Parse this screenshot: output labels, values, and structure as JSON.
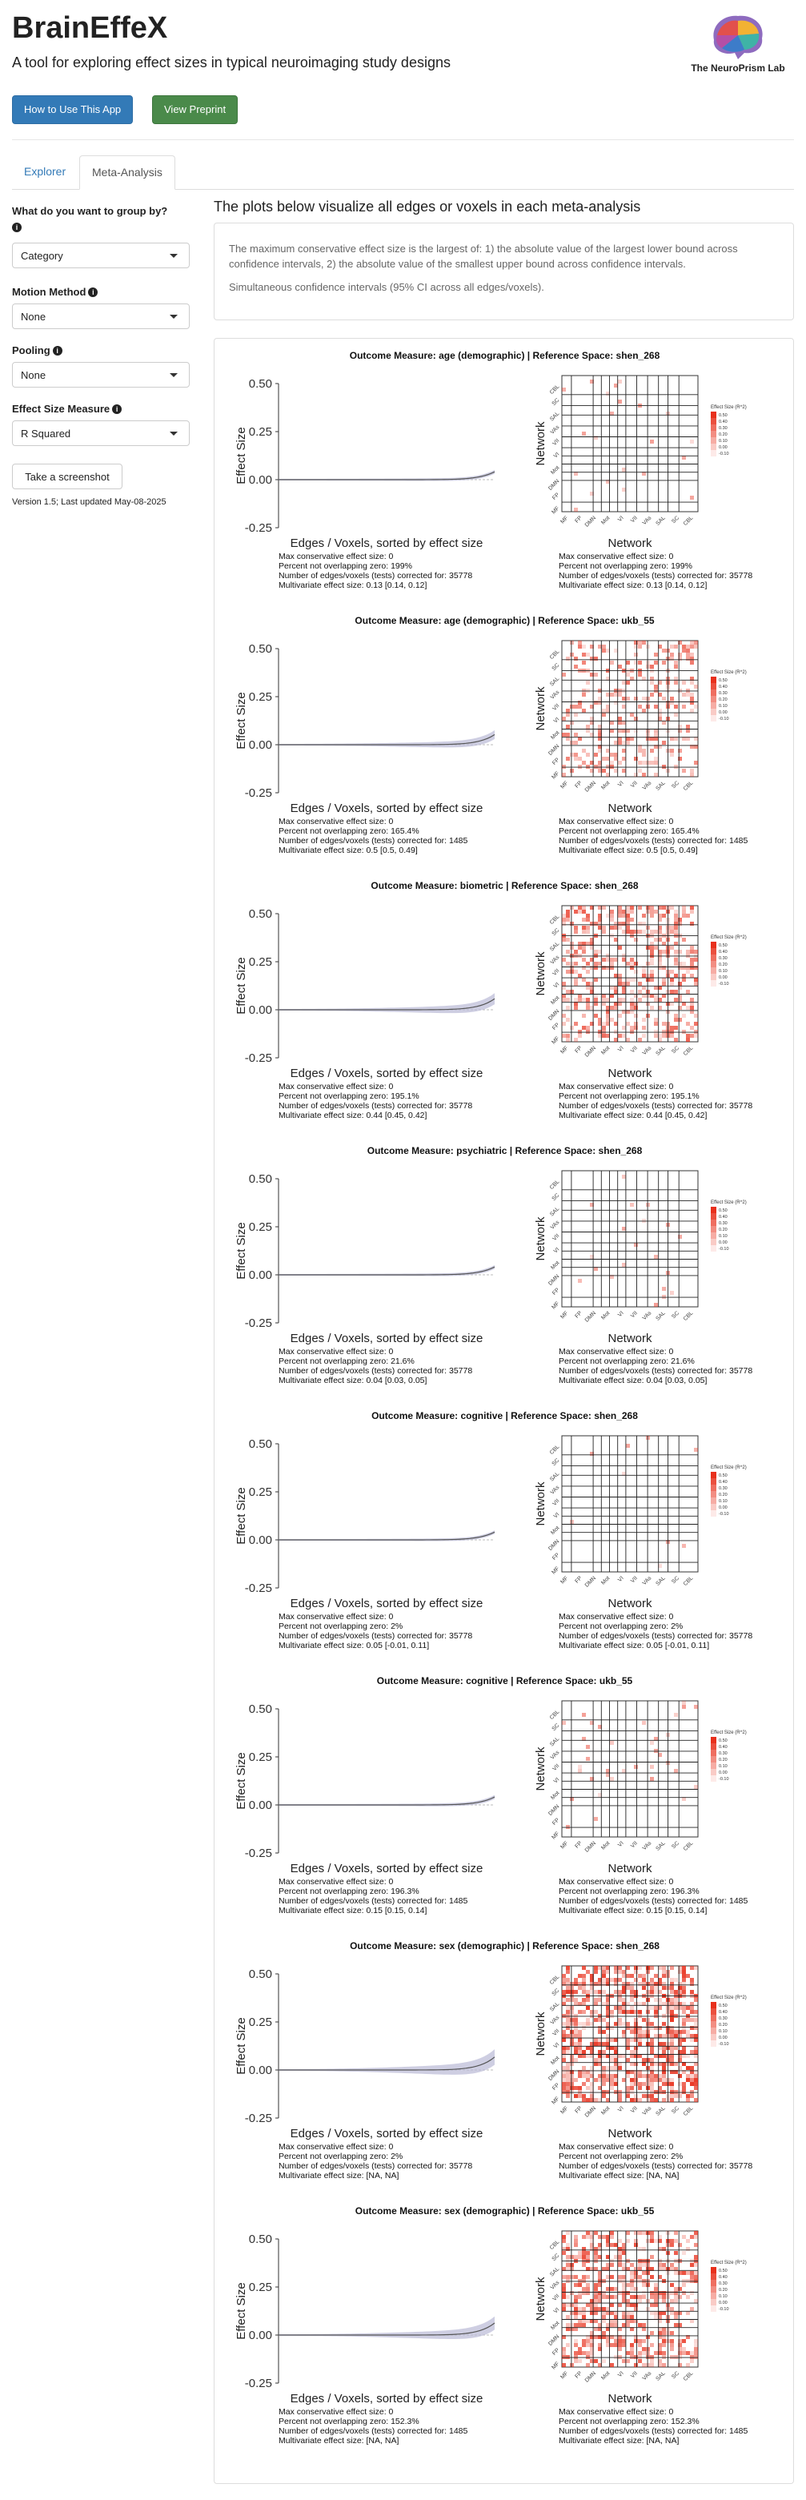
{
  "app": {
    "title": "BrainEffeX",
    "subtitle": "A tool for exploring effect sizes in typical neuroimaging study designs",
    "logo_text": "The NeuroPrism Lab"
  },
  "buttons": {
    "how_to": "How to Use This App",
    "preprint": "View Preprint",
    "screenshot": "Take a screenshot"
  },
  "tabs": [
    {
      "label": "Explorer"
    },
    {
      "label": "Meta-Analysis"
    }
  ],
  "sidebar": {
    "group_by": {
      "label": "What do you want to group by?",
      "value": "Category"
    },
    "motion": {
      "label": "Motion Method",
      "value": "None"
    },
    "pooling": {
      "label": "Pooling",
      "value": "None"
    },
    "effect_size": {
      "label": "Effect Size Measure",
      "value": "R Squared"
    },
    "version": "Version 1.5; Last updated May-08-2025"
  },
  "main": {
    "title": "The plots below visualize all edges or voxels in each meta-analysis",
    "note1": "The maximum conservative effect size is the largest of: 1) the absolute value of the largest lower bound across confidence intervals, 2) the absolute value of the smallest upper bound across confidence intervals.",
    "note2": "Simultaneous confidence intervals (95% CI across all edges/voxels)."
  },
  "plot_labels": {
    "y_label": "Effect Size",
    "x_label": "Edges / Voxels, sorted by effect size",
    "y_ticks": [
      "0.50",
      "0.25",
      "0.00",
      "-0.25"
    ],
    "heat_y_label": "Network",
    "heat_x_label": "Network",
    "heat_networks_x": [
      "MF",
      "FP",
      "DMN",
      "Mot",
      "VI",
      "VII",
      "VAs",
      "SAL",
      "SC",
      "CBL"
    ],
    "heat_networks_y": [
      "CBL",
      "SC",
      "SAL",
      "VAs",
      "VII",
      "VI",
      "Mot",
      "DMN",
      "FP",
      "MF"
    ],
    "legend_title": "Effect Size (R^2)",
    "legend_values": [
      "0.50",
      "0.40",
      "0.30",
      "0.20",
      "0.10",
      "0.00",
      "-0.10"
    ]
  },
  "colors": {
    "primary": "#337ab7",
    "success": "#4a8a4a",
    "heat": "#e8301c"
  },
  "panels": [
    {
      "title": "Outcome Measure: age (demographic)   |   Reference Space: shen_268",
      "stats": [
        "Max conservative effect size: 0",
        "Percent not overlapping zero: 199%",
        "Number of edges/voxels (tests) corrected for: 35778",
        "Multivariate effect size: 0.13 [0.14, 0.12]"
      ],
      "density": 0.02
    },
    {
      "title": "Outcome Measure: age (demographic)   |   Reference Space: ukb_55",
      "stats": [
        "Max conservative effect size: 0",
        "Percent not overlapping zero: 165.4%",
        "Number of edges/voxels (tests) corrected for: 1485",
        "Multivariate effect size: 0.5 [0.5, 0.49]"
      ],
      "density": 0.25
    },
    {
      "title": "Outcome Measure: biometric   |   Reference Space: shen_268",
      "stats": [
        "Max conservative effect size: 0",
        "Percent not overlapping zero: 195.1%",
        "Number of edges/voxels (tests) corrected for: 35778",
        "Multivariate effect size: 0.44 [0.45, 0.42]"
      ],
      "density": 0.35
    },
    {
      "title": "Outcome Measure: psychiatric   |   Reference Space: shen_268",
      "stats": [
        "Max conservative effect size: 0",
        "Percent not overlapping zero: 21.6%",
        "Number of edges/voxels (tests) corrected for: 35778",
        "Multivariate effect size: 0.04 [0.03, 0.05]"
      ],
      "density": 0.02
    },
    {
      "title": "Outcome Measure: cognitive   |   Reference Space: shen_268",
      "stats": [
        "Max conservative effect size: 0",
        "Percent not overlapping zero: 2%",
        "Number of edges/voxels (tests) corrected for: 35778",
        "Multivariate effect size: 0.05 [-0.01, 0.11]"
      ],
      "density": 0.01
    },
    {
      "title": "Outcome Measure: cognitive   |   Reference Space: ukb_55",
      "stats": [
        "Max conservative effect size: 0",
        "Percent not overlapping zero: 196.3%",
        "Number of edges/voxels (tests) corrected for: 1485",
        "Multivariate effect size: 0.15 [0.15, 0.14]"
      ],
      "density": 0.03
    },
    {
      "title": "Outcome Measure: sex (demographic)   |   Reference Space: shen_268",
      "stats": [
        "Max conservative effect size: 0",
        "Percent not overlapping zero: 2%",
        "Number of edges/voxels (tests) corrected for: 35778",
        "Multivariate effect size:  [NA, NA]"
      ],
      "density": 0.55
    },
    {
      "title": "Outcome Measure: sex (demographic)   |   Reference Space: ukb_55",
      "stats": [
        "Max conservative effect size: 0",
        "Percent not overlapping zero: 152.3%",
        "Number of edges/voxels (tests) corrected for: 1485",
        "Multivariate effect size:  [NA, NA]"
      ],
      "density": 0.45
    }
  ]
}
